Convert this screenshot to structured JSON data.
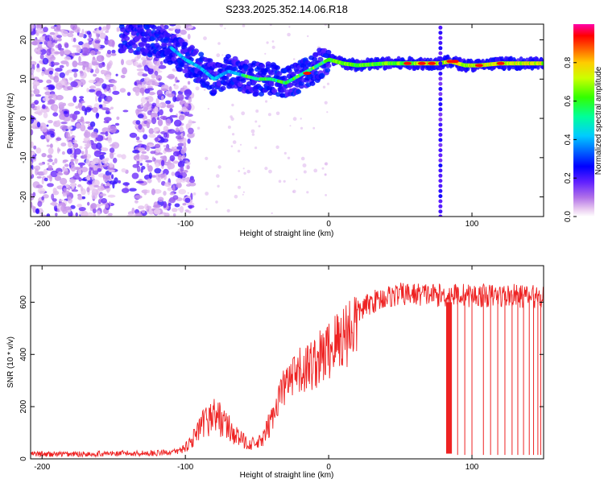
{
  "title": "S233.2025.352.14.06.R18",
  "colors": {
    "axis": "#000000",
    "snr_line": "#ee2222"
  },
  "chart_data": [
    {
      "type": "heatmap",
      "title": "S233.2025.352.14.06.R18",
      "xlabel": "Height of straight line (km)",
      "ylabel": "Frequency (Hz)",
      "xlim": [
        -208,
        150
      ],
      "ylim": [
        -25,
        24
      ],
      "x_ticks": [
        -200,
        -100,
        0,
        100
      ],
      "y_ticks": [
        -20,
        -10,
        0,
        10,
        20
      ],
      "ridge": [
        {
          "x": -140,
          "y": 21
        },
        {
          "x": -125,
          "y": 20
        },
        {
          "x": -110,
          "y": 18
        },
        {
          "x": -100,
          "y": 15
        },
        {
          "x": -90,
          "y": 13
        },
        {
          "x": -80,
          "y": 10
        },
        {
          "x": -70,
          "y": 12
        },
        {
          "x": -60,
          "y": 11
        },
        {
          "x": -50,
          "y": 10
        },
        {
          "x": -40,
          "y": 10
        },
        {
          "x": -30,
          "y": 9
        },
        {
          "x": -20,
          "y": 11
        },
        {
          "x": -10,
          "y": 13
        },
        {
          "x": 0,
          "y": 15
        },
        {
          "x": 10,
          "y": 14
        },
        {
          "x": 20,
          "y": 13.5
        },
        {
          "x": 40,
          "y": 14
        },
        {
          "x": 60,
          "y": 14
        },
        {
          "x": 77,
          "y": 14
        },
        {
          "x": 85,
          "y": 14.5
        },
        {
          "x": 95,
          "y": 13.5
        },
        {
          "x": 105,
          "y": 13.5
        },
        {
          "x": 120,
          "y": 14
        },
        {
          "x": 150,
          "y": 14
        }
      ],
      "colorbar": {
        "label": "Normalized spectral amplitude",
        "range": [
          0,
          1
        ],
        "ticks": [
          "0.0",
          "0.2",
          "0.4",
          "0.6",
          "0.8"
        ]
      }
    },
    {
      "type": "line",
      "xlabel": "Height of straight line (km)",
      "ylabel": "SNR (10 * v/v)",
      "xlim": [
        -208,
        150
      ],
      "ylim": [
        0,
        740
      ],
      "x_ticks": [
        -200,
        -100,
        0,
        100
      ],
      "y_ticks": [
        0,
        200,
        400,
        600
      ],
      "series": [
        {
          "x": [
            -208,
            -180,
            -150,
            -120,
            -105,
            -100,
            -95,
            -90,
            -85,
            -80,
            -75,
            -70,
            -65,
            -60,
            -55,
            -50,
            -45,
            -40,
            -35,
            -30,
            -25,
            -20,
            -15,
            -10,
            -5,
            0,
            5,
            10,
            15,
            20,
            25,
            30,
            35,
            40,
            45,
            50,
            60,
            70,
            80,
            90,
            100,
            110,
            120,
            130,
            140,
            150
          ],
          "values": [
            18,
            18,
            20,
            22,
            28,
            45,
            75,
            110,
            150,
            170,
            150,
            120,
            90,
            70,
            60,
            55,
            80,
            150,
            250,
            300,
            320,
            350,
            370,
            390,
            410,
            440,
            470,
            500,
            530,
            560,
            580,
            600,
            610,
            620,
            625,
            630,
            630,
            630,
            625,
            630,
            625,
            625,
            625,
            625,
            620,
            625
          ]
        }
      ],
      "dropouts": [
        {
          "x0": 82,
          "x1": 86,
          "value": 20
        },
        {
          "x": 90
        },
        {
          "x": 95
        },
        {
          "x": 100
        },
        {
          "x": 108
        },
        {
          "x": 113
        },
        {
          "x": 118
        },
        {
          "x": 123
        },
        {
          "x": 128
        },
        {
          "x": 132
        },
        {
          "x": 136
        },
        {
          "x": 140
        },
        {
          "x": 143
        },
        {
          "x": 146
        },
        {
          "x": 148
        }
      ]
    }
  ]
}
